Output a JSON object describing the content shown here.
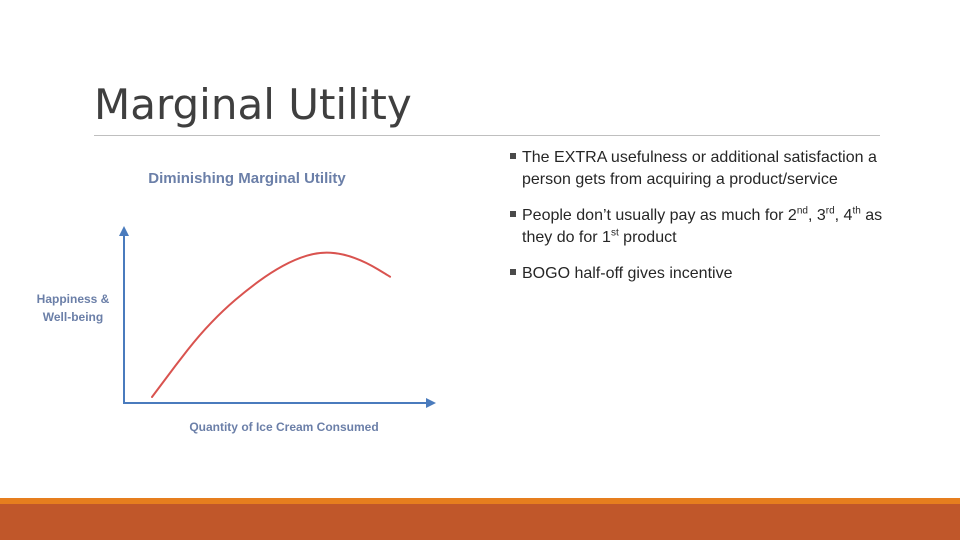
{
  "slide": {
    "title": "Marginal Utility"
  },
  "chart_data": {
    "type": "line",
    "title": "Diminishing Marginal Utility",
    "xlabel": "Quantity of Ice Cream Consumed",
    "ylabel_line1": "Happiness &",
    "ylabel_line2": "Well-being",
    "x": [
      0,
      0.1,
      0.2,
      0.3,
      0.4,
      0.5,
      0.6,
      0.7,
      0.8,
      0.9,
      1.0
    ],
    "series": [
      {
        "values": [
          0,
          0.22,
          0.43,
          0.6,
          0.74,
          0.86,
          0.95,
          1.0,
          0.99,
          0.93,
          0.83
        ]
      }
    ],
    "xlim": [
      0,
      1.15
    ],
    "ylim": [
      0,
      1.18
    ],
    "colors": {
      "line": "#d9534f",
      "axis": "#4a7bbd",
      "title": "#6b7fa8",
      "label": "#6b7fa8"
    }
  },
  "bullets": {
    "b1": {
      "text": "The EXTRA usefulness or additional satisfaction a person gets from acquiring a product/service"
    },
    "b2": {
      "p1": "People don’t usually pay as much for 2",
      "s1": "nd",
      "p2": ", 3",
      "s2": "rd",
      "p3": ", 4",
      "s3": "th",
      "p4": " as they do for 1",
      "s4": "st",
      "p5": " product"
    },
    "b3": {
      "text": "BOGO half-off gives incentive"
    }
  },
  "theme": {
    "band_top": "#e67e1e",
    "band": "#c0572a"
  }
}
